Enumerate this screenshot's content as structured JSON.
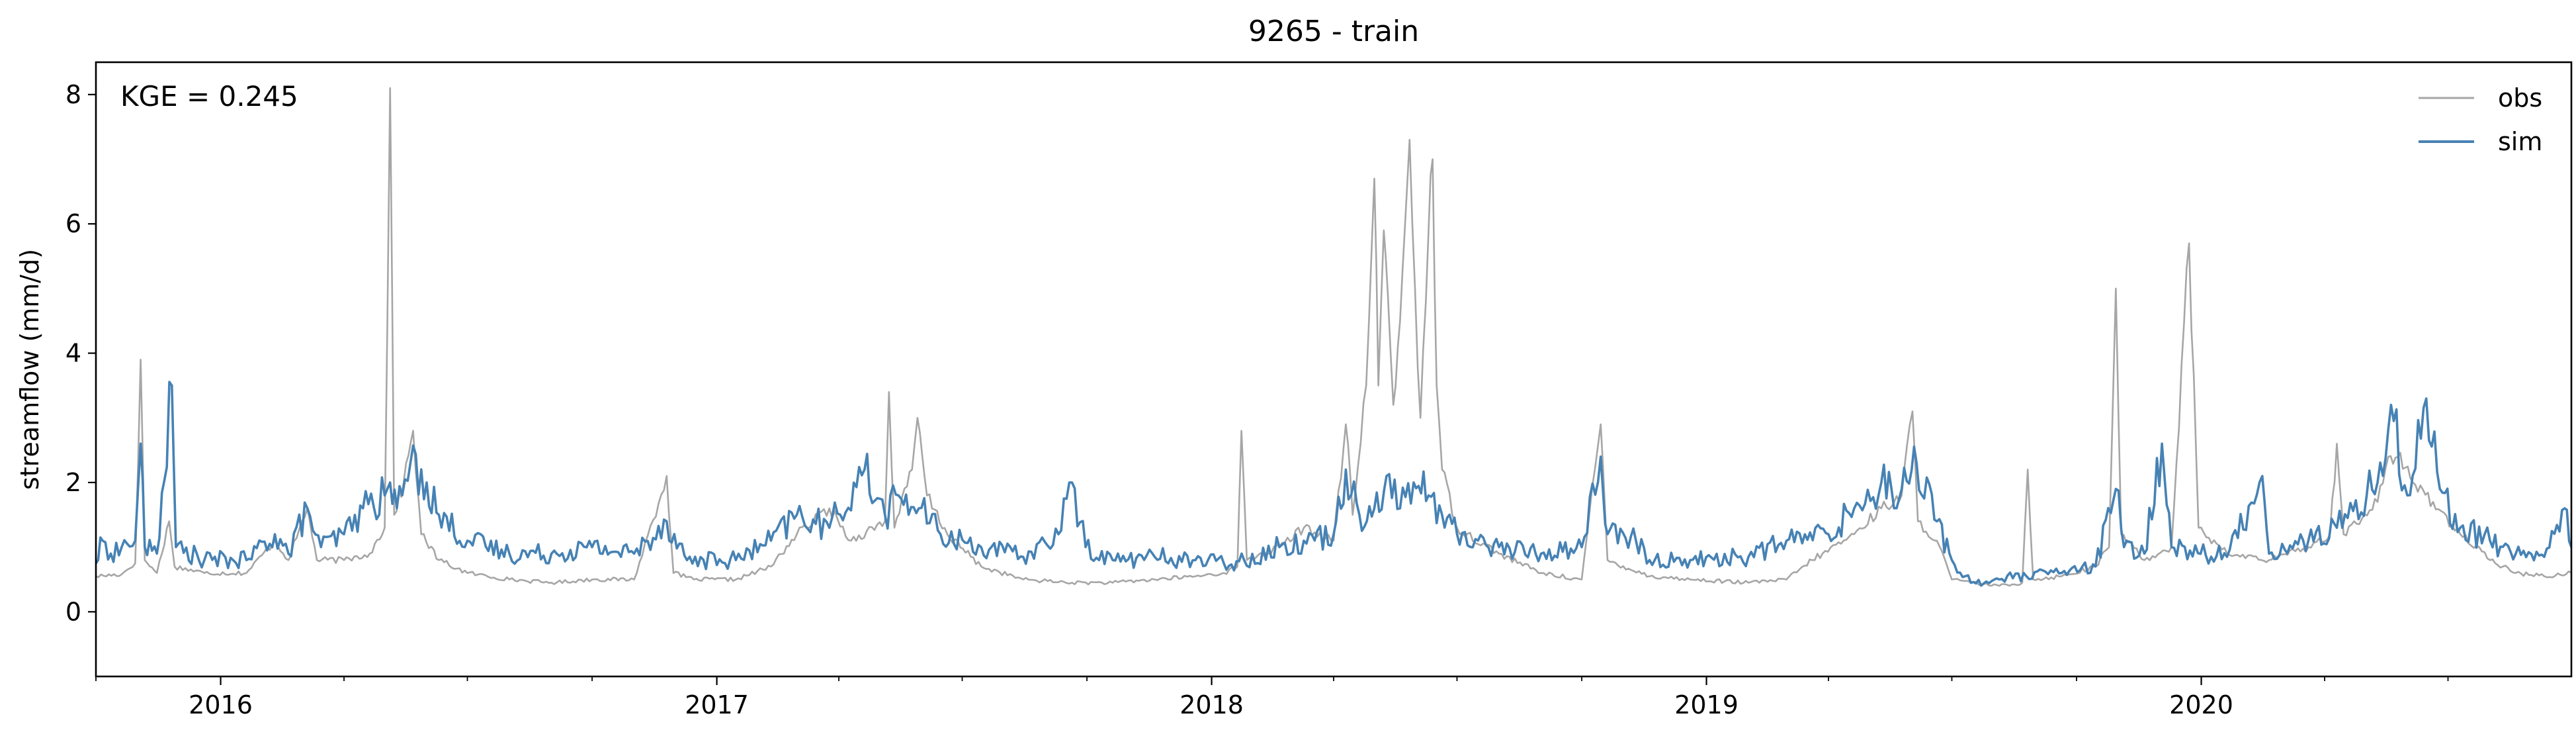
{
  "chart_data": {
    "type": "line",
    "title": "9265 - train",
    "xlabel": "",
    "ylabel": "streamflow (mm/d)",
    "annotation": "KGE = 0.245",
    "x_start": "2015-10-01",
    "x_end": "2020-09-30",
    "xlim": [
      "2015-10-01",
      "2020-09-30"
    ],
    "ylim": [
      -1,
      8.5
    ],
    "yticks": [
      0,
      2,
      4,
      6,
      8
    ],
    "xticks": [
      {
        "date": "2016-01-01",
        "label": "2016"
      },
      {
        "date": "2017-01-01",
        "label": "2017"
      },
      {
        "date": "2018-01-01",
        "label": "2018"
      },
      {
        "date": "2019-01-01",
        "label": "2019"
      },
      {
        "date": "2020-01-01",
        "label": "2020"
      }
    ],
    "grid": false,
    "legend_position": "top-right",
    "series": [
      {
        "name": "obs",
        "color": "#a6a6a6",
        "points": [
          [
            "2015-10-01",
            0.55
          ],
          [
            "2015-10-20",
            0.58
          ],
          [
            "2015-10-30",
            0.75
          ],
          [
            "2015-11-03",
            3.9
          ],
          [
            "2015-11-06",
            0.8
          ],
          [
            "2015-11-15",
            0.6
          ],
          [
            "2015-11-24",
            1.4
          ],
          [
            "2015-11-28",
            0.7
          ],
          [
            "2015-12-20",
            0.6
          ],
          [
            "2016-01-20",
            0.6
          ],
          [
            "2016-02-10",
            1.1
          ],
          [
            "2016-02-20",
            0.8
          ],
          [
            "2016-03-05",
            1.6
          ],
          [
            "2016-03-12",
            0.8
          ],
          [
            "2016-04-01",
            0.8
          ],
          [
            "2016-04-20",
            0.9
          ],
          [
            "2016-05-01",
            1.3
          ],
          [
            "2016-05-05",
            8.1
          ],
          [
            "2016-05-08",
            1.5
          ],
          [
            "2016-05-15",
            2.0
          ],
          [
            "2016-05-22",
            2.8
          ],
          [
            "2016-05-28",
            1.2
          ],
          [
            "2016-06-10",
            0.8
          ],
          [
            "2016-07-01",
            0.6
          ],
          [
            "2016-08-01",
            0.5
          ],
          [
            "2016-09-01",
            0.45
          ],
          [
            "2016-10-01",
            0.5
          ],
          [
            "2016-11-01",
            0.5
          ],
          [
            "2016-11-25",
            2.1
          ],
          [
            "2016-11-30",
            0.6
          ],
          [
            "2016-12-15",
            0.5
          ],
          [
            "2017-01-15",
            0.5
          ],
          [
            "2017-02-10",
            0.7
          ],
          [
            "2017-03-01",
            1.2
          ],
          [
            "2017-03-25",
            1.6
          ],
          [
            "2017-04-10",
            1.1
          ],
          [
            "2017-05-05",
            1.4
          ],
          [
            "2017-05-08",
            3.4
          ],
          [
            "2017-05-12",
            1.3
          ],
          [
            "2017-05-25",
            2.2
          ],
          [
            "2017-05-29",
            3.0
          ],
          [
            "2017-06-05",
            1.8
          ],
          [
            "2017-06-20",
            1.2
          ],
          [
            "2017-07-15",
            0.7
          ],
          [
            "2017-08-15",
            0.5
          ],
          [
            "2017-09-20",
            0.45
          ],
          [
            "2017-10-20",
            0.45
          ],
          [
            "2017-11-20",
            0.5
          ],
          [
            "2017-12-20",
            0.55
          ],
          [
            "2018-01-10",
            0.6
          ],
          [
            "2018-01-20",
            0.7
          ],
          [
            "2018-01-23",
            2.8
          ],
          [
            "2018-01-27",
            0.8
          ],
          [
            "2018-02-20",
            1.0
          ],
          [
            "2018-03-10",
            1.3
          ],
          [
            "2018-04-01",
            1.1
          ],
          [
            "2018-04-10",
            2.9
          ],
          [
            "2018-04-15",
            1.5
          ],
          [
            "2018-04-25",
            3.5
          ],
          [
            "2018-05-01",
            6.7
          ],
          [
            "2018-05-04",
            3.5
          ],
          [
            "2018-05-08",
            5.9
          ],
          [
            "2018-05-11",
            4.9
          ],
          [
            "2018-05-15",
            3.2
          ],
          [
            "2018-05-20",
            4.5
          ],
          [
            "2018-05-27",
            7.3
          ],
          [
            "2018-05-31",
            5.0
          ],
          [
            "2018-06-04",
            3.0
          ],
          [
            "2018-06-10",
            5.9
          ],
          [
            "2018-06-13",
            7.0
          ],
          [
            "2018-06-16",
            3.5
          ],
          [
            "2018-06-20",
            2.2
          ],
          [
            "2018-07-01",
            1.3
          ],
          [
            "2018-08-01",
            0.9
          ],
          [
            "2018-09-01",
            0.6
          ],
          [
            "2018-10-01",
            0.5
          ],
          [
            "2018-10-15",
            2.9
          ],
          [
            "2018-10-20",
            0.8
          ],
          [
            "2018-11-20",
            0.55
          ],
          [
            "2018-12-20",
            0.5
          ],
          [
            "2019-02-01",
            0.45
          ],
          [
            "2019-03-01",
            0.5
          ],
          [
            "2019-03-20",
            0.8
          ],
          [
            "2019-04-20",
            1.2
          ],
          [
            "2019-05-10",
            1.6
          ],
          [
            "2019-05-25",
            1.8
          ],
          [
            "2019-06-02",
            3.1
          ],
          [
            "2019-06-06",
            1.4
          ],
          [
            "2019-06-20",
            1.1
          ],
          [
            "2019-07-01",
            0.5
          ],
          [
            "2019-07-15",
            0.45
          ],
          [
            "2019-08-05",
            0.4
          ],
          [
            "2019-08-22",
            0.45
          ],
          [
            "2019-08-26",
            2.2
          ],
          [
            "2019-08-30",
            0.5
          ],
          [
            "2019-09-20",
            0.55
          ],
          [
            "2019-10-15",
            0.7
          ],
          [
            "2019-10-25",
            1.0
          ],
          [
            "2019-10-30",
            5.0
          ],
          [
            "2019-11-03",
            1.2
          ],
          [
            "2019-11-20",
            0.8
          ],
          [
            "2019-12-10",
            1.0
          ],
          [
            "2019-12-23",
            5.7
          ],
          [
            "2019-12-30",
            1.3
          ],
          [
            "2020-01-20",
            0.9
          ],
          [
            "2020-02-20",
            0.8
          ],
          [
            "2020-03-20",
            1.0
          ],
          [
            "2020-04-05",
            1.2
          ],
          [
            "2020-04-10",
            2.6
          ],
          [
            "2020-04-15",
            1.2
          ],
          [
            "2020-05-10",
            1.7
          ],
          [
            "2020-05-18",
            2.4
          ],
          [
            "2020-05-25",
            2.4
          ],
          [
            "2020-06-05",
            2.0
          ],
          [
            "2020-06-20",
            1.7
          ],
          [
            "2020-07-10",
            1.2
          ],
          [
            "2020-08-01",
            0.8
          ],
          [
            "2020-08-20",
            0.6
          ],
          [
            "2020-09-10",
            0.55
          ],
          [
            "2020-09-30",
            0.6
          ]
        ]
      },
      {
        "name": "sim",
        "color": "#4682b4",
        "points": [
          [
            "2015-10-01",
            0.75
          ],
          [
            "2015-10-06",
            1.1
          ],
          [
            "2015-10-12",
            0.9
          ],
          [
            "2015-10-20",
            1.0
          ],
          [
            "2015-10-30",
            1.1
          ],
          [
            "2015-11-03",
            2.6
          ],
          [
            "2015-11-06",
            1.0
          ],
          [
            "2015-11-15",
            0.9
          ],
          [
            "2015-11-26",
            3.5
          ],
          [
            "2015-11-29",
            1.0
          ],
          [
            "2015-12-20",
            0.8
          ],
          [
            "2016-01-20",
            0.8
          ],
          [
            "2016-02-10",
            1.2
          ],
          [
            "2016-02-20",
            0.9
          ],
          [
            "2016-03-05",
            1.6
          ],
          [
            "2016-03-15",
            1.0
          ],
          [
            "2016-04-01",
            1.2
          ],
          [
            "2016-04-15",
            1.6
          ],
          [
            "2016-05-01",
            1.8
          ],
          [
            "2016-05-05",
            2.0
          ],
          [
            "2016-05-10",
            1.6
          ],
          [
            "2016-05-20",
            2.3
          ],
          [
            "2016-06-01",
            2.0
          ],
          [
            "2016-06-10",
            1.5
          ],
          [
            "2016-07-01",
            1.1
          ],
          [
            "2016-08-01",
            0.9
          ],
          [
            "2016-09-01",
            0.9
          ],
          [
            "2016-10-01",
            1.0
          ],
          [
            "2016-11-01",
            0.9
          ],
          [
            "2016-11-25",
            1.4
          ],
          [
            "2016-12-10",
            0.8
          ],
          [
            "2017-01-15",
            0.8
          ],
          [
            "2017-02-10",
            1.1
          ],
          [
            "2017-03-01",
            1.5
          ],
          [
            "2017-03-25",
            1.3
          ],
          [
            "2017-04-20",
            2.2
          ],
          [
            "2017-05-05",
            1.5
          ],
          [
            "2017-05-15",
            1.8
          ],
          [
            "2017-05-30",
            1.6
          ],
          [
            "2017-06-15",
            1.2
          ],
          [
            "2017-07-15",
            1.0
          ],
          [
            "2017-08-15",
            0.85
          ],
          [
            "2017-09-10",
            1.2
          ],
          [
            "2017-09-20",
            2.0
          ],
          [
            "2017-09-30",
            1.0
          ],
          [
            "2017-10-20",
            0.8
          ],
          [
            "2017-11-20",
            0.85
          ],
          [
            "2017-12-20",
            0.8
          ],
          [
            "2018-01-10",
            0.75
          ],
          [
            "2018-01-25",
            0.8
          ],
          [
            "2018-02-20",
            1.0
          ],
          [
            "2018-03-10",
            1.1
          ],
          [
            "2018-04-01",
            1.2
          ],
          [
            "2018-04-10",
            2.2
          ],
          [
            "2018-04-20",
            1.5
          ],
          [
            "2018-05-01",
            1.6
          ],
          [
            "2018-05-10",
            2.1
          ],
          [
            "2018-05-20",
            1.6
          ],
          [
            "2018-05-30",
            2.0
          ],
          [
            "2018-06-10",
            1.8
          ],
          [
            "2018-06-20",
            1.5
          ],
          [
            "2018-07-01",
            1.2
          ],
          [
            "2018-08-01",
            1.0
          ],
          [
            "2018-09-01",
            0.9
          ],
          [
            "2018-10-01",
            1.0
          ],
          [
            "2018-10-15",
            2.4
          ],
          [
            "2018-10-20",
            1.2
          ],
          [
            "2018-11-10",
            1.1
          ],
          [
            "2018-11-20",
            0.8
          ],
          [
            "2018-12-20",
            0.8
          ],
          [
            "2019-02-01",
            0.85
          ],
          [
            "2019-03-01",
            1.1
          ],
          [
            "2019-04-01",
            1.2
          ],
          [
            "2019-04-20",
            1.6
          ],
          [
            "2019-05-10",
            2.0
          ],
          [
            "2019-05-25",
            1.9
          ],
          [
            "2019-06-05",
            2.3
          ],
          [
            "2019-06-20",
            1.4
          ],
          [
            "2019-07-01",
            0.8
          ],
          [
            "2019-07-15",
            0.45
          ],
          [
            "2019-08-05",
            0.5
          ],
          [
            "2019-08-25",
            0.55
          ],
          [
            "2019-09-20",
            0.6
          ],
          [
            "2019-10-15",
            0.7
          ],
          [
            "2019-10-30",
            1.9
          ],
          [
            "2019-11-05",
            1.0
          ],
          [
            "2019-11-20",
            0.9
          ],
          [
            "2019-12-03",
            2.6
          ],
          [
            "2019-12-10",
            1.0
          ],
          [
            "2020-01-20",
            0.85
          ],
          [
            "2020-02-15",
            2.1
          ],
          [
            "2020-02-20",
            0.9
          ],
          [
            "2020-03-20",
            1.1
          ],
          [
            "2020-04-10",
            1.3
          ],
          [
            "2020-05-10",
            2.0
          ],
          [
            "2020-05-20",
            3.2
          ],
          [
            "2020-06-01",
            1.8
          ],
          [
            "2020-06-15",
            3.3
          ],
          [
            "2020-06-25",
            1.9
          ],
          [
            "2020-07-10",
            1.3
          ],
          [
            "2020-08-01",
            1.1
          ],
          [
            "2020-08-20",
            0.9
          ],
          [
            "2020-09-10",
            0.85
          ],
          [
            "2020-09-25",
            1.6
          ],
          [
            "2020-09-30",
            1.0
          ]
        ]
      }
    ]
  }
}
